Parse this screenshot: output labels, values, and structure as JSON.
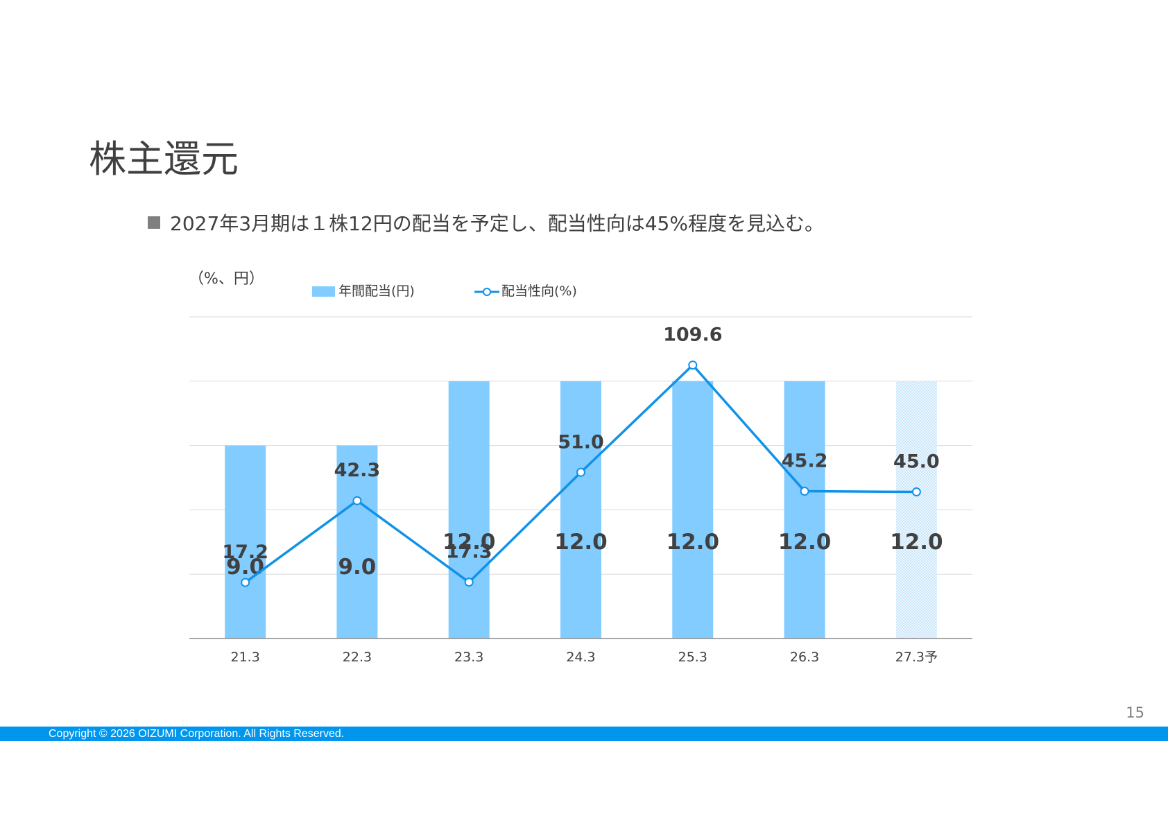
{
  "slide": {
    "title": "株主還元",
    "bullet": "2027年3月期は１株12円の配当を予定し、配当性向は45%程度を見込む。",
    "page_number": "15",
    "copyright": "Copyright © 2026 OIZUMI Corporation. All Rights Reserved."
  },
  "chart_data": {
    "type": "bar+line",
    "unit_label": "（%、円）",
    "categories": [
      "21.3",
      "22.3",
      "23.3",
      "24.3",
      "25.3",
      "26.3",
      "27.3予"
    ],
    "ylim": [
      0,
      15
    ],
    "grid": true,
    "legend_placement": "top",
    "series": [
      {
        "name": "年間配当(円)",
        "kind": "bar",
        "values": [
          9.0,
          9.0,
          12.0,
          12.0,
          12.0,
          12.0,
          12.0
        ],
        "labels": [
          "9.0",
          "9.0",
          "12.0",
          "12.0",
          "12.0",
          "12.0",
          "12.0"
        ],
        "color": "#82ccff",
        "forecast_index": 6
      },
      {
        "name": "配当性向(%)",
        "kind": "line",
        "values": [
          17.2,
          42.3,
          17.3,
          51.0,
          109.6,
          45.2,
          45.0
        ],
        "labels": [
          "17.2",
          "42.3",
          "17.3",
          "51.0",
          "109.6",
          "45.2",
          "45.0"
        ],
        "color": "#1192e8"
      }
    ]
  }
}
